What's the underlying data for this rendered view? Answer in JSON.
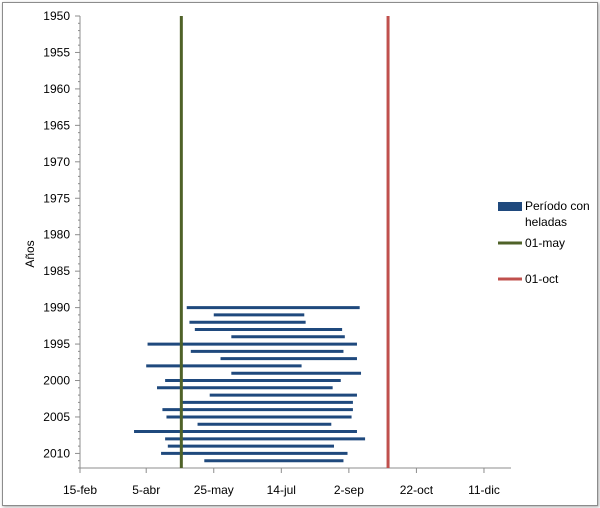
{
  "chart_data": {
    "type": "bar",
    "orientation": "horizontal-floating",
    "title": "",
    "xlabel": "",
    "ylabel": "Años",
    "x_tick_labels": [
      "15-feb",
      "5-abr",
      "25-may",
      "14-jul",
      "2-sep",
      "22-oct",
      "11-dic"
    ],
    "x_ticks_day_of_year": [
      46,
      95,
      145,
      195,
      245,
      295,
      345
    ],
    "xlim_day_of_year": [
      46,
      365
    ],
    "y_tick_labels": [
      "1950",
      "1955",
      "1960",
      "1965",
      "1970",
      "1975",
      "1980",
      "1985",
      "1990",
      "1995",
      "2000",
      "2005",
      "2010"
    ],
    "ylim": [
      1950,
      2012
    ],
    "y_inverted": true,
    "grid": false,
    "legend_position": "right",
    "series": [
      {
        "name": "Período con heladas",
        "color": "#1f497d",
        "note_units": "start and end as day of year",
        "data": [
          {
            "year": 1990,
            "start": 125,
            "end": 253
          },
          {
            "year": 1991,
            "start": 145,
            "end": 212
          },
          {
            "year": 1992,
            "start": 127,
            "end": 213
          },
          {
            "year": 1993,
            "start": 131,
            "end": 240
          },
          {
            "year": 1994,
            "start": 158,
            "end": 242
          },
          {
            "year": 1995,
            "start": 96,
            "end": 251
          },
          {
            "year": 1996,
            "start": 128,
            "end": 241
          },
          {
            "year": 1997,
            "start": 150,
            "end": 251
          },
          {
            "year": 1998,
            "start": 95,
            "end": 210
          },
          {
            "year": 1999,
            "start": 158,
            "end": 254
          },
          {
            "year": 2000,
            "start": 109,
            "end": 239
          },
          {
            "year": 2001,
            "start": 103,
            "end": 233
          },
          {
            "year": 2002,
            "start": 142,
            "end": 251
          },
          {
            "year": 2003,
            "start": 121,
            "end": 248
          },
          {
            "year": 2004,
            "start": 107,
            "end": 248
          },
          {
            "year": 2005,
            "start": 110,
            "end": 247
          },
          {
            "year": 2006,
            "start": 133,
            "end": 232
          },
          {
            "year": 2007,
            "start": 86,
            "end": 251
          },
          {
            "year": 2008,
            "start": 109,
            "end": 257
          },
          {
            "year": 2009,
            "start": 111,
            "end": 234
          },
          {
            "year": 2010,
            "start": 106,
            "end": 244
          },
          {
            "year": 2011,
            "start": 138,
            "end": 241
          }
        ]
      },
      {
        "name": "01-may",
        "color": "#4f6228",
        "day_of_year": 121
      },
      {
        "name": "01-oct",
        "color": "#c0504d",
        "day_of_year": 274
      }
    ],
    "legend": [
      "Período con heladas",
      "01-may",
      "01-oct"
    ]
  }
}
